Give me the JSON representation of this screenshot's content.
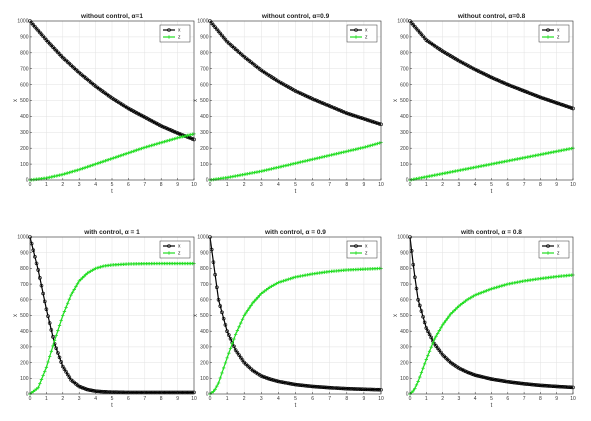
{
  "chart_data": [
    {
      "type": "line",
      "title": "without control, α=1",
      "xlabel": "t",
      "ylabel": "x",
      "xlim": [
        0,
        10
      ],
      "ylim": [
        0,
        1000
      ],
      "xticks": [
        "0",
        "1",
        "2",
        "3",
        "4",
        "5",
        "6",
        "7",
        "8",
        "9",
        "10"
      ],
      "yticks": [
        "0",
        "100",
        "200",
        "300",
        "400",
        "500",
        "600",
        "700",
        "800",
        "900",
        "1000"
      ],
      "grid": true,
      "legend": "top-right",
      "x": [
        0,
        1,
        2,
        3,
        4,
        5,
        6,
        7,
        8,
        9,
        10
      ],
      "series": [
        {
          "name": "x",
          "color": "#000000",
          "marker": "circle",
          "values": [
            1000,
            880,
            770,
            675,
            590,
            515,
            450,
            395,
            340,
            295,
            255
          ]
        },
        {
          "name": "z",
          "color": "#22dd22",
          "marker": "plus",
          "values": [
            0,
            12,
            35,
            65,
            100,
            135,
            170,
            205,
            235,
            265,
            290
          ]
        }
      ]
    },
    {
      "type": "line",
      "title": "without control, α=0.9",
      "xlabel": "t",
      "ylabel": "x",
      "xlim": [
        0,
        10
      ],
      "ylim": [
        0,
        1000
      ],
      "xticks": [
        "0",
        "1",
        "2",
        "3",
        "4",
        "5",
        "6",
        "7",
        "8",
        "9",
        "10"
      ],
      "yticks": [
        "0",
        "100",
        "200",
        "300",
        "400",
        "500",
        "600",
        "700",
        "800",
        "900",
        "1000"
      ],
      "grid": true,
      "legend": "top-right",
      "x": [
        0,
        1,
        2,
        3,
        4,
        5,
        6,
        7,
        8,
        9,
        10
      ],
      "series": [
        {
          "name": "x",
          "color": "#000000",
          "marker": "circle",
          "values": [
            1000,
            870,
            775,
            690,
            620,
            560,
            510,
            465,
            420,
            385,
            350
          ]
        },
        {
          "name": "z",
          "color": "#22dd22",
          "marker": "plus",
          "values": [
            0,
            15,
            35,
            55,
            80,
            105,
            130,
            155,
            180,
            205,
            235
          ]
        }
      ]
    },
    {
      "type": "line",
      "title": "without control, α=0.8",
      "xlabel": "t",
      "ylabel": "x",
      "xlim": [
        0,
        10
      ],
      "ylim": [
        0,
        1000
      ],
      "xticks": [
        "0",
        "1",
        "2",
        "3",
        "4",
        "5",
        "6",
        "7",
        "8",
        "9",
        "10"
      ],
      "yticks": [
        "0",
        "100",
        "200",
        "300",
        "400",
        "500",
        "600",
        "700",
        "800",
        "900",
        "1000"
      ],
      "grid": true,
      "legend": "top-right",
      "x": [
        0,
        1,
        2,
        3,
        4,
        5,
        6,
        7,
        8,
        9,
        10
      ],
      "series": [
        {
          "name": "x",
          "color": "#000000",
          "marker": "circle",
          "values": [
            1000,
            880,
            810,
            750,
            695,
            645,
            600,
            560,
            520,
            485,
            450
          ]
        },
        {
          "name": "z",
          "color": "#22dd22",
          "marker": "plus",
          "values": [
            0,
            20,
            40,
            60,
            80,
            100,
            120,
            140,
            160,
            180,
            200
          ]
        }
      ]
    },
    {
      "type": "line",
      "title": "with control, α = 1",
      "xlabel": "t",
      "ylabel": "x",
      "xlim": [
        0,
        10
      ],
      "ylim": [
        0,
        1000
      ],
      "xticks": [
        "0",
        "1",
        "2",
        "3",
        "4",
        "5",
        "6",
        "7",
        "8",
        "9",
        "10"
      ],
      "yticks": [
        "0",
        "100",
        "200",
        "300",
        "400",
        "500",
        "600",
        "700",
        "800",
        "900",
        "1000"
      ],
      "grid": true,
      "legend": "top-right",
      "x": [
        0,
        0.5,
        1,
        1.5,
        2,
        2.5,
        3,
        3.5,
        4,
        4.5,
        5,
        6,
        7,
        8,
        9,
        10
      ],
      "series": [
        {
          "name": "x",
          "color": "#000000",
          "marker": "circle",
          "values": [
            1000,
            790,
            540,
            320,
            175,
            90,
            48,
            28,
            18,
            14,
            12,
            10,
            10,
            10,
            10,
            10
          ]
        },
        {
          "name": "z",
          "color": "#22dd22",
          "marker": "plus",
          "values": [
            0,
            40,
            170,
            340,
            500,
            630,
            720,
            770,
            800,
            815,
            822,
            828,
            830,
            831,
            831,
            831
          ]
        }
      ]
    },
    {
      "type": "line",
      "title": "with control, α = 0.9",
      "xlabel": "t",
      "ylabel": "x",
      "xlim": [
        0,
        10
      ],
      "ylim": [
        0,
        1000
      ],
      "xticks": [
        "0",
        "1",
        "2",
        "3",
        "4",
        "5",
        "6",
        "7",
        "8",
        "9",
        "10"
      ],
      "yticks": [
        "0",
        "100",
        "200",
        "300",
        "400",
        "500",
        "600",
        "700",
        "800",
        "900",
        "1000"
      ],
      "grid": true,
      "legend": "top-right",
      "x": [
        0,
        0.25,
        0.5,
        1,
        1.5,
        2,
        2.5,
        3,
        3.5,
        4,
        5,
        6,
        7,
        8,
        9,
        10
      ],
      "series": [
        {
          "name": "x",
          "color": "#000000",
          "marker": "circle",
          "values": [
            1000,
            800,
            600,
            400,
            280,
            200,
            150,
            115,
            95,
            80,
            60,
            48,
            40,
            34,
            30,
            27
          ]
        },
        {
          "name": "z",
          "color": "#22dd22",
          "marker": "plus",
          "values": [
            0,
            20,
            70,
            230,
            380,
            500,
            580,
            640,
            680,
            710,
            745,
            765,
            780,
            790,
            795,
            800
          ]
        }
      ]
    },
    {
      "type": "line",
      "title": "with control, α = 0.8",
      "xlabel": "t",
      "ylabel": "x",
      "xlim": [
        0,
        10
      ],
      "ylim": [
        0,
        1000
      ],
      "xticks": [
        "0",
        "1",
        "2",
        "3",
        "4",
        "5",
        "6",
        "7",
        "8",
        "9",
        "10"
      ],
      "yticks": [
        "0",
        "100",
        "200",
        "300",
        "400",
        "500",
        "600",
        "700",
        "800",
        "900",
        "1000"
      ],
      "grid": true,
      "legend": "top-right",
      "x": [
        0,
        0.25,
        0.5,
        1,
        1.5,
        2,
        2.5,
        3,
        3.5,
        4,
        5,
        6,
        7,
        8,
        9,
        10
      ],
      "series": [
        {
          "name": "x",
          "color": "#000000",
          "marker": "circle",
          "values": [
            1000,
            780,
            600,
            420,
            320,
            250,
            200,
            165,
            140,
            120,
            95,
            78,
            65,
            55,
            48,
            42
          ]
        },
        {
          "name": "z",
          "color": "#22dd22",
          "marker": "plus",
          "values": [
            0,
            25,
            80,
            220,
            350,
            440,
            510,
            560,
            600,
            630,
            670,
            700,
            720,
            735,
            748,
            758
          ]
        }
      ]
    }
  ]
}
